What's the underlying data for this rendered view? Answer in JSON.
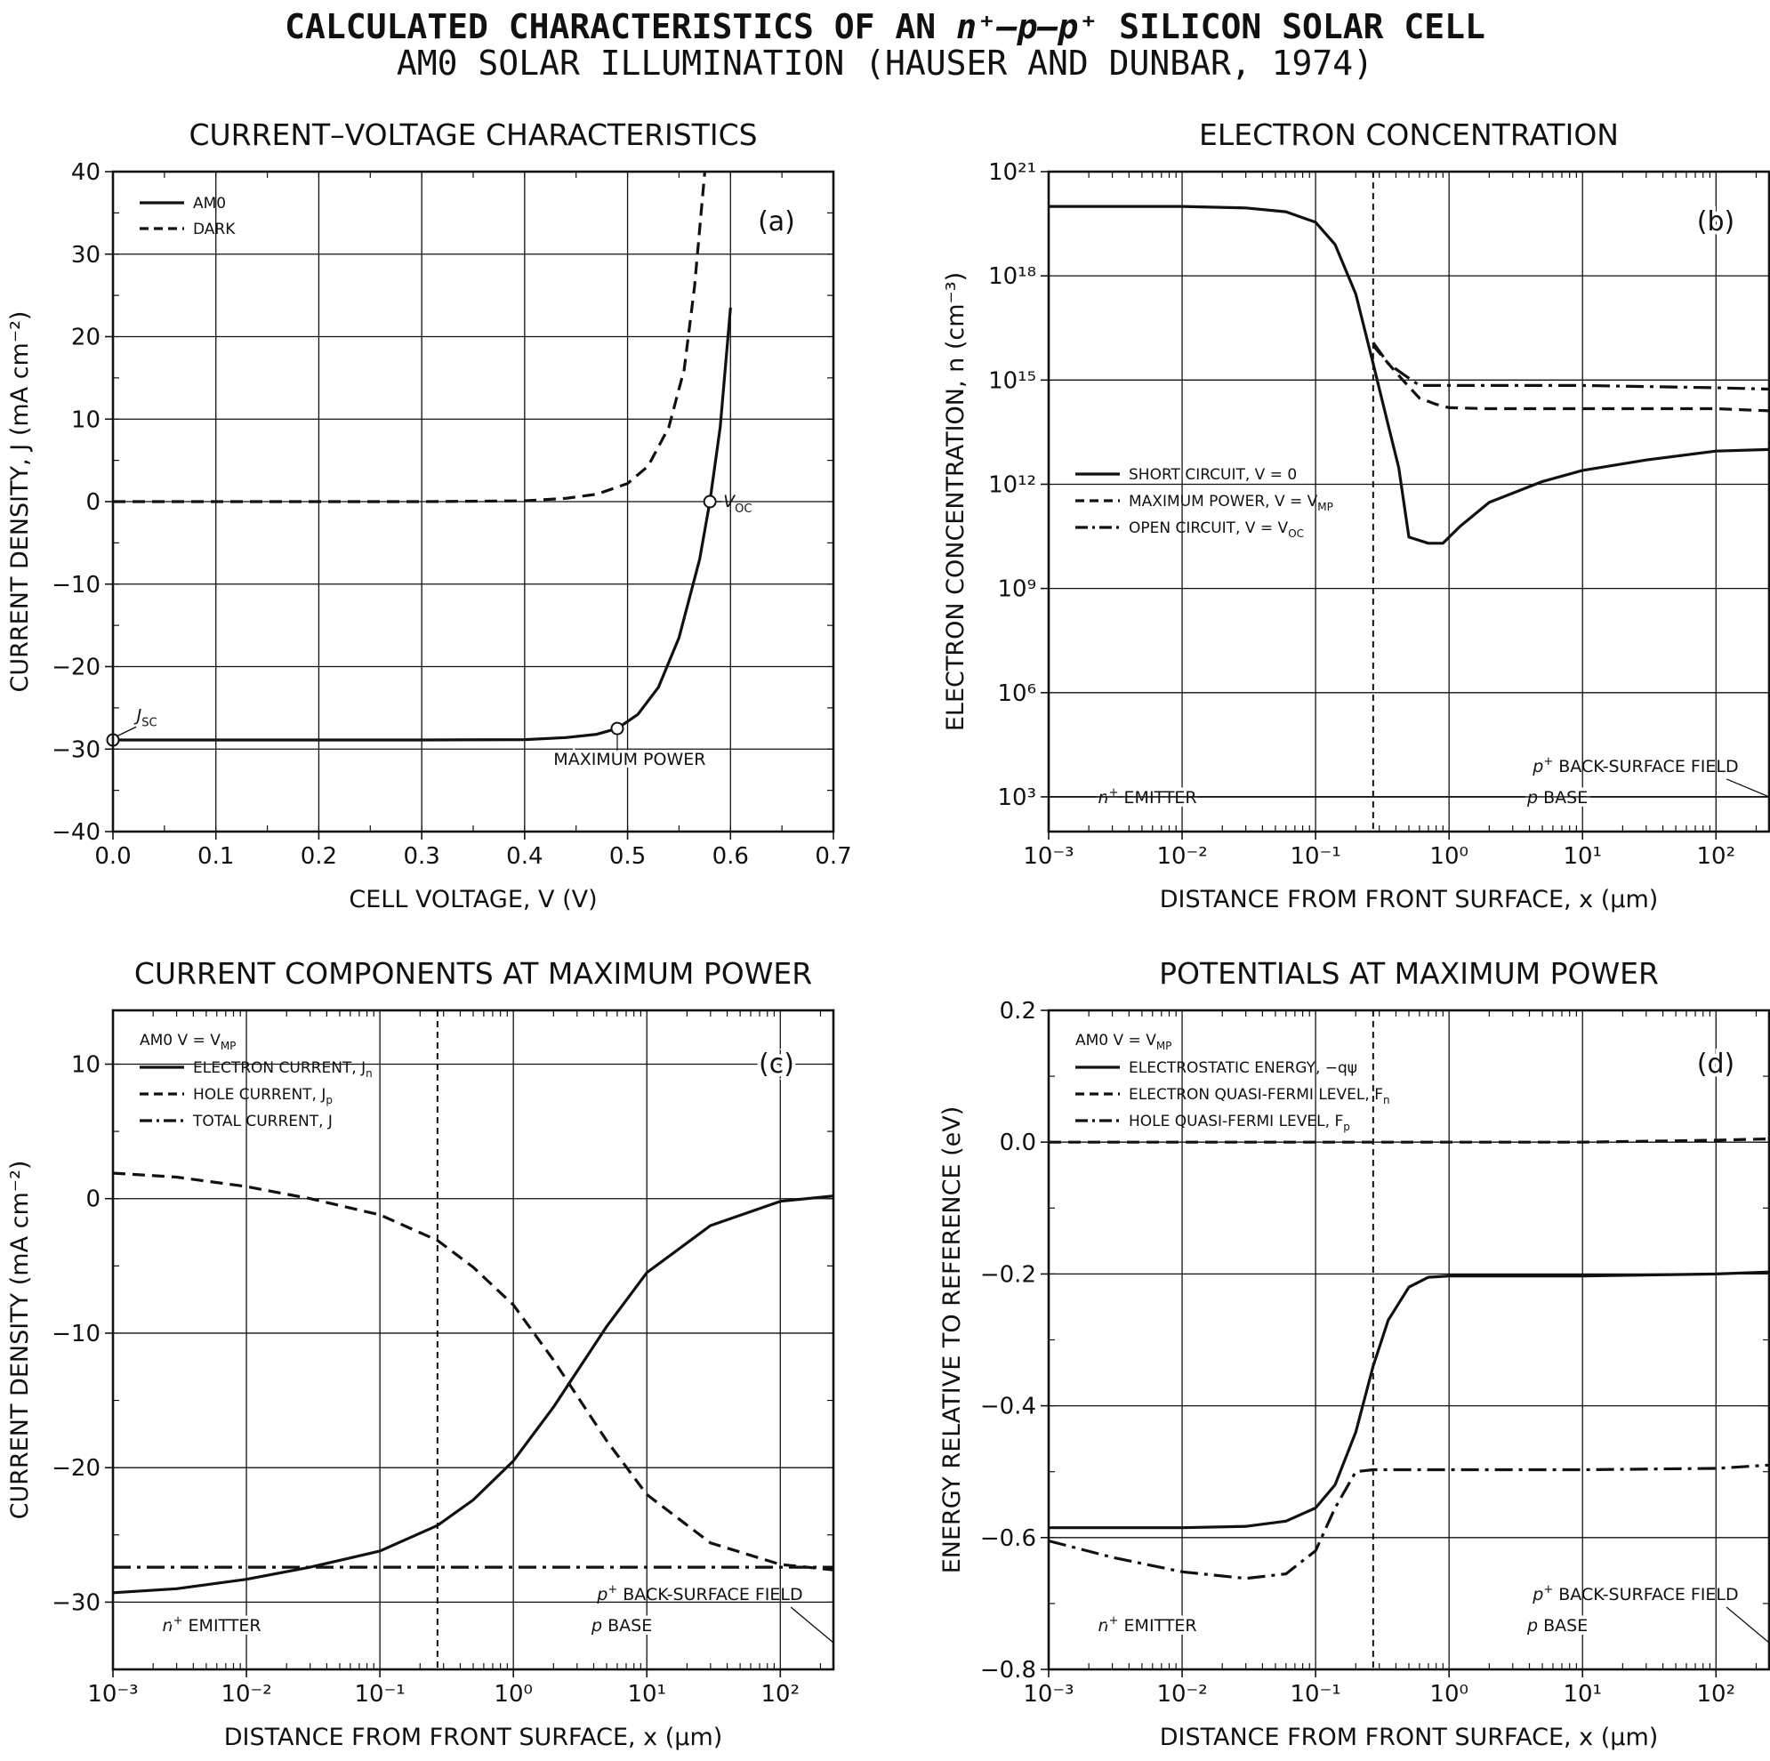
{
  "figure": {
    "title_prefix": "CALCULATED CHARACTERISTICS OF AN ",
    "title_device": "n⁺–p–p⁺",
    "title_suffix": " SILICON SOLAR CELL",
    "subtitle": "AM0 SOLAR ILLUMINATION (HAUSER AND DUNBAR, 1974)"
  },
  "colors": {
    "ink": "#111111",
    "grid": "#1a1a1a",
    "background": "#ffffff"
  },
  "chart_data": [
    {
      "id": "a",
      "type": "line",
      "title": "CURRENT–VOLTAGE CHARACTERISTICS",
      "panel_label": "(a)",
      "xlabel": "CELL VOLTAGE, V (V)",
      "ylabel": "CURRENT DENSITY, J (mA cm⁻²)",
      "xscale": "linear",
      "yscale": "linear",
      "xlim": [
        0,
        0.7
      ],
      "ylim": [
        -40,
        40
      ],
      "xticks": [
        0,
        0.1,
        0.2,
        0.3,
        0.4,
        0.5,
        0.6,
        0.7
      ],
      "xticklabels": [
        "0.0",
        "0.1",
        "0.2",
        "0.3",
        "0.4",
        "0.5",
        "0.6",
        "0.7"
      ],
      "yticks": [
        40,
        30,
        20,
        10,
        0,
        -10,
        -20,
        -30,
        -40
      ],
      "yticklabels": [
        "40",
        "30",
        "20",
        "10",
        "0",
        "−10",
        "−20",
        "−30",
        "−40"
      ],
      "grid": true,
      "legend_position": "top-left",
      "legend": [
        {
          "label": "AM0",
          "style": "solid"
        },
        {
          "label": "DARK",
          "style": "dashed"
        }
      ],
      "series": [
        {
          "name": "AM0",
          "style": "solid",
          "x": [
            0,
            0.1,
            0.2,
            0.3,
            0.4,
            0.44,
            0.47,
            0.49,
            0.51,
            0.53,
            0.55,
            0.57,
            0.58,
            0.59,
            0.6
          ],
          "y": [
            -28.9,
            -28.9,
            -28.9,
            -28.9,
            -28.85,
            -28.6,
            -28.2,
            -27.5,
            -25.8,
            -22.5,
            -16.5,
            -7,
            0,
            9,
            23.5
          ]
        },
        {
          "name": "DARK",
          "style": "dashed",
          "x": [
            0,
            0.1,
            0.2,
            0.3,
            0.4,
            0.44,
            0.47,
            0.5,
            0.52,
            0.54,
            0.555,
            0.565,
            0.575
          ],
          "y": [
            0,
            0,
            0,
            0,
            0.1,
            0.4,
            0.9,
            2.2,
            4.3,
            9,
            16,
            26,
            40
          ]
        }
      ],
      "markers": [
        {
          "x": 0,
          "y": -28.9
        },
        {
          "x": 0.49,
          "y": -27.5
        },
        {
          "x": 0.58,
          "y": 0
        }
      ],
      "annotations": [
        {
          "id": "jsc",
          "main": "J",
          "sub": "SC"
        },
        {
          "id": "voc",
          "main": "V",
          "sub": "OC"
        },
        {
          "id": "maxp",
          "text": "MAXIMUM POWER"
        }
      ]
    },
    {
      "id": "b",
      "type": "line",
      "title": "ELECTRON CONCENTRATION",
      "panel_label": "(b)",
      "xlabel": "DISTANCE FROM FRONT SURFACE, x (μm)",
      "ylabel": "ELECTRON CONCENTRATION, n (cm⁻³)",
      "xscale": "log",
      "yscale": "log",
      "xlim": [
        0.001,
        250
      ],
      "ylim": [
        100,
        1e+21
      ],
      "xticklabels": [
        "10⁻³",
        "10⁻²",
        "10⁻¹",
        "10⁰",
        "10¹",
        "10²"
      ],
      "yticklabels": [
        "10²¹",
        "10¹⁸",
        "10¹⁵",
        "10¹²",
        "10⁹",
        "10⁶",
        "10³"
      ],
      "grid": true,
      "legend_position": "center-left",
      "legend": [
        {
          "label": "SHORT CIRCUIT, V = 0",
          "style": "solid"
        },
        {
          "label": "MAXIMUM POWER, V = V",
          "sub": "MP",
          "style": "dashed"
        },
        {
          "label": "OPEN CIRCUIT, V = V",
          "sub": "OC",
          "style": "dashdot"
        }
      ],
      "junction_x": 0.27,
      "series": [
        {
          "name": "SHORT CIRCUIT, V = 0",
          "style": "solid",
          "x": [
            0.001,
            0.01,
            0.03,
            0.06,
            0.1,
            0.14,
            0.2,
            0.27,
            0.35,
            0.42,
            0.5,
            0.7,
            0.9,
            1.2,
            2,
            5,
            10,
            30,
            100,
            250
          ],
          "y": [
            1e+20,
            1e+20,
            9e+19,
            7e+19,
            3.5e+19,
            8e+18,
            3e+17,
            3000000000000000.0,
            50000000000000.0,
            3000000000000.0,
            30000000000.0,
            20000000000.0,
            20000000000.0,
            60000000000.0,
            300000000000.0,
            1200000000000.0,
            2500000000000.0,
            5000000000000.0,
            9000000000000.0,
            10000000000000.0
          ]
        },
        {
          "name": "MAXIMUM POWER, V = V_MP",
          "style": "dashed",
          "x": [
            0.27,
            0.35,
            0.45,
            0.6,
            0.8,
            1,
            2,
            10,
            100,
            250
          ],
          "y": [
            1e+16,
            3000000000000000.0,
            1000000000000000.0,
            300000000000000.0,
            200000000000000.0,
            160000000000000.0,
            150000000000000.0,
            150000000000000.0,
            150000000000000.0,
            130000000000000.0
          ]
        },
        {
          "name": "OPEN CIRCUIT, V = V_OC",
          "style": "dashdot",
          "x": [
            0.27,
            0.35,
            0.45,
            0.6,
            1,
            10,
            100,
            250
          ],
          "y": [
            1.2e+16,
            3000000000000000.0,
            1500000000000000.0,
            700000000000000.0,
            700000000000000.0,
            700000000000000.0,
            600000000000000.0,
            550000000000000.0
          ]
        }
      ],
      "annotations": [
        {
          "id": "emitter",
          "main": "n",
          "sup": "+",
          "text": " EMITTER"
        },
        {
          "id": "base",
          "main": "p",
          "text": " BASE"
        },
        {
          "id": "bsf",
          "main": "p",
          "sup": "+",
          "text": " BACK-SURFACE FIELD"
        }
      ]
    },
    {
      "id": "c",
      "type": "line",
      "title": "CURRENT COMPONENTS AT MAXIMUM POWER",
      "panel_label": "(c)",
      "xlabel": "DISTANCE FROM FRONT SURFACE, x (μm)",
      "ylabel": "CURRENT DENSITY (mA cm⁻²)",
      "xscale": "log",
      "yscale": "linear",
      "xlim": [
        0.001,
        250
      ],
      "ylim": [
        -35,
        14
      ],
      "yticks": [
        10,
        0,
        -10,
        -20,
        -30
      ],
      "xticklabels": [
        "10⁻³",
        "10⁻²",
        "10⁻¹",
        "10⁰",
        "10¹",
        "10²"
      ],
      "yticklabels": [
        "10",
        "0",
        "−10",
        "−20",
        "−30"
      ],
      "grid": true,
      "legend_position": "top-left",
      "legend_header": {
        "text": "AM0 V = V",
        "sub": "MP"
      },
      "legend": [
        {
          "label": "ELECTRON CURRENT, J",
          "sub": "n",
          "style": "solid"
        },
        {
          "label": "HOLE CURRENT, J",
          "sub": "p",
          "style": "dashed"
        },
        {
          "label": "TOTAL CURRENT, J",
          "style": "dashdot"
        }
      ],
      "junction_x": 0.27,
      "series": [
        {
          "name": "ELECTRON CURRENT, J_n",
          "style": "solid",
          "x": [
            0.001,
            0.003,
            0.01,
            0.03,
            0.1,
            0.27,
            0.5,
            1,
            2,
            5,
            10,
            30,
            100,
            250
          ],
          "y": [
            -29.3,
            -29,
            -28.3,
            -27.4,
            -26.2,
            -24.3,
            -22.4,
            -19.5,
            -15.5,
            -9.5,
            -5.5,
            -2,
            -0.2,
            0.2
          ]
        },
        {
          "name": "HOLE CURRENT, J_p",
          "style": "dashed",
          "x": [
            0.001,
            0.003,
            0.01,
            0.03,
            0.1,
            0.27,
            0.5,
            1,
            2,
            5,
            10,
            30,
            100,
            250
          ],
          "y": [
            1.9,
            1.6,
            0.9,
            0,
            -1.2,
            -3.1,
            -5.1,
            -7.9,
            -12,
            -18,
            -22,
            -25.6,
            -27.2,
            -27.6
          ]
        },
        {
          "name": "TOTAL CURRENT, J",
          "style": "dashdot",
          "x": [
            0.001,
            250
          ],
          "y": [
            -27.4,
            -27.4
          ]
        }
      ],
      "annotations": [
        {
          "id": "emitter",
          "main": "n",
          "sup": "+",
          "text": " EMITTER"
        },
        {
          "id": "base",
          "main": "p",
          "text": " BASE"
        },
        {
          "id": "bsf",
          "main": "p",
          "sup": "+",
          "text": " BACK-SURFACE FIELD"
        }
      ]
    },
    {
      "id": "d",
      "type": "line",
      "title": "POTENTIALS AT MAXIMUM POWER",
      "panel_label": "(d)",
      "xlabel": "DISTANCE FROM FRONT SURFACE, x (μm)",
      "ylabel": "ENERGY RELATIVE TO REFERENCE (eV)",
      "xscale": "log",
      "yscale": "linear",
      "xlim": [
        0.001,
        250
      ],
      "ylim": [
        -0.8,
        0.2
      ],
      "yticks": [
        0.2,
        0,
        -0.2,
        -0.4,
        -0.6,
        -0.8
      ],
      "xticklabels": [
        "10⁻³",
        "10⁻²",
        "10⁻¹",
        "10⁰",
        "10¹",
        "10²"
      ],
      "yticklabels": [
        "0.2",
        "0.0",
        "−0.2",
        "−0.4",
        "−0.6",
        "−0.8"
      ],
      "grid": true,
      "legend_position": "top-left",
      "legend_header": {
        "text": "AM0 V = V",
        "sub": "MP"
      },
      "legend": [
        {
          "label": "ELECTROSTATIC ENERGY, −qψ",
          "style": "solid"
        },
        {
          "label": "ELECTRON QUASI-FERMI LEVEL, F",
          "sub": "n",
          "style": "dashed"
        },
        {
          "label": "HOLE QUASI-FERMI LEVEL, F",
          "sub": "p",
          "style": "dashdot"
        }
      ],
      "junction_x": 0.27,
      "series": [
        {
          "name": "ELECTROSTATIC ENERGY, −qψ",
          "style": "solid",
          "x": [
            0.001,
            0.01,
            0.03,
            0.06,
            0.1,
            0.14,
            0.2,
            0.27,
            0.35,
            0.5,
            0.7,
            1,
            10,
            100,
            250
          ],
          "y": [
            -0.585,
            -0.585,
            -0.583,
            -0.575,
            -0.555,
            -0.52,
            -0.44,
            -0.34,
            -0.27,
            -0.22,
            -0.205,
            -0.203,
            -0.203,
            -0.2,
            -0.197
          ]
        },
        {
          "name": "ELECTRON QUASI-FERMI LEVEL, F_n",
          "style": "dashed",
          "x": [
            0.001,
            1,
            10,
            100,
            250
          ],
          "y": [
            0,
            0,
            0,
            0.003,
            0.005
          ]
        },
        {
          "name": "HOLE QUASI-FERMI LEVEL, F_p",
          "style": "dashdot",
          "x": [
            0.001,
            0.003,
            0.01,
            0.03,
            0.06,
            0.1,
            0.14,
            0.2,
            0.27,
            1,
            10,
            100,
            250
          ],
          "y": [
            -0.605,
            -0.63,
            -0.652,
            -0.662,
            -0.655,
            -0.62,
            -0.555,
            -0.5,
            -0.497,
            -0.497,
            -0.497,
            -0.495,
            -0.49
          ]
        }
      ],
      "annotations": [
        {
          "id": "emitter",
          "main": "n",
          "sup": "+",
          "text": " EMITTER"
        },
        {
          "id": "base",
          "main": "p",
          "text": " BASE"
        },
        {
          "id": "bsf",
          "main": "p",
          "sup": "+",
          "text": " BACK-SURFACE FIELD"
        }
      ]
    }
  ]
}
